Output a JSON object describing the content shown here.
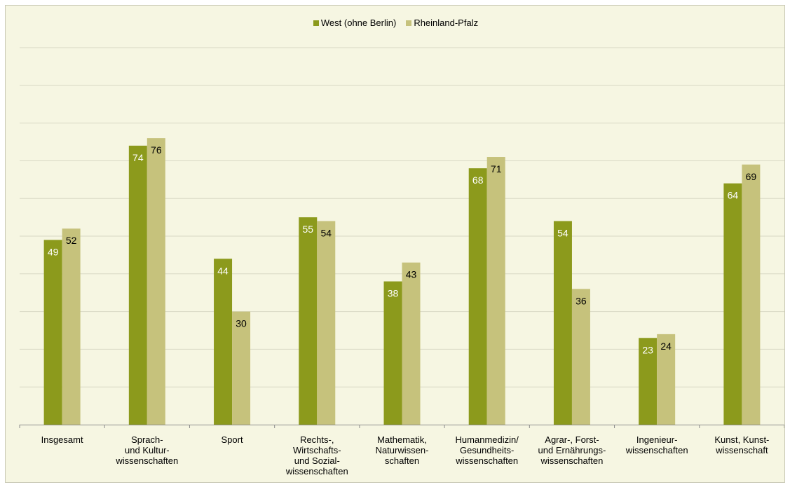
{
  "colors": {
    "west": "#8c9a1c",
    "rlp": "#c6c27c",
    "grid": "#d8d8c4",
    "background": "#f6f6e2"
  },
  "chart_data": {
    "type": "bar",
    "title": "",
    "xlabel": "",
    "ylabel": "",
    "ylim": [
      0,
      100
    ],
    "grid": true,
    "legend": "top-center",
    "categories": [
      "Insgesamt",
      "Sprach-\nund Kultur-\nwissenschaften",
      "Sport",
      "Rechts-,\nWirtschafts-\nund Sozial-\nwissenschaften",
      "Mathematik,\nNaturwissen-\nschaften",
      "Humanmedizin/\nGesundheits-\nwissenschaften",
      "Agrar-, Forst-\nund Ernährungs-\nwissenschaften",
      "Ingenieur-\nwissenschaften",
      "Kunst, Kunst-\nwissenschaft"
    ],
    "series": [
      {
        "name": "West (ohne Berlin)",
        "values": [
          49,
          74,
          44,
          55,
          38,
          68,
          54,
          23,
          64
        ],
        "labels": [
          "49",
          "74",
          "44",
          "55",
          "38",
          "68",
          "54",
          "23",
          "64"
        ]
      },
      {
        "name": "Rheinland-Pfalz",
        "values": [
          52,
          76,
          30,
          54,
          43,
          71,
          36,
          24,
          69
        ],
        "labels": [
          "52",
          "76",
          "30",
          "54",
          "43",
          "71",
          "36",
          "24",
          "69"
        ]
      }
    ]
  }
}
